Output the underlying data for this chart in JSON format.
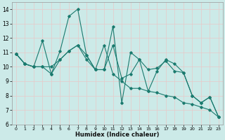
{
  "xlabel": "Humidex (Indice chaleur)",
  "xlim": [
    -0.5,
    23.5
  ],
  "ylim": [
    6,
    14.5
  ],
  "yticks": [
    6,
    7,
    8,
    9,
    10,
    11,
    12,
    13,
    14
  ],
  "xticks": [
    0,
    1,
    2,
    3,
    4,
    5,
    6,
    7,
    8,
    9,
    10,
    11,
    12,
    13,
    14,
    15,
    16,
    17,
    18,
    19,
    20,
    21,
    22,
    23
  ],
  "bg_color": "#cceae8",
  "grid_color": "#b0d8d4",
  "line_color": "#1a7a6e",
  "series": [
    [
      10.9,
      10.2,
      10.0,
      11.8,
      9.5,
      11.1,
      13.5,
      14.0,
      10.8,
      9.8,
      9.8,
      12.8,
      7.5,
      11.0,
      10.5,
      8.3,
      9.7,
      10.5,
      10.2,
      9.6,
      8.0,
      7.5,
      7.9,
      6.5
    ],
    [
      10.9,
      10.2,
      10.0,
      10.0,
      9.5,
      10.5,
      11.1,
      11.5,
      10.8,
      9.8,
      11.5,
      9.5,
      9.0,
      8.5,
      8.5,
      8.3,
      8.2,
      8.0,
      7.9,
      7.5,
      7.4,
      7.2,
      7.0,
      6.5
    ],
    [
      10.9,
      10.2,
      10.0,
      10.0,
      10.0,
      10.5,
      11.1,
      11.5,
      10.5,
      9.8,
      9.8,
      11.5,
      9.2,
      9.5,
      10.5,
      9.8,
      9.9,
      10.4,
      9.7,
      9.6,
      8.0,
      7.5,
      7.9,
      6.5
    ]
  ],
  "figsize": [
    3.2,
    2.0
  ],
  "dpi": 100
}
